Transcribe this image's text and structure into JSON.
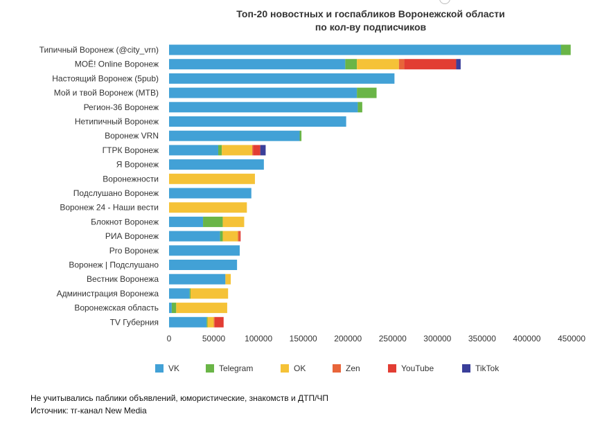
{
  "chart_data": {
    "type": "bar",
    "orientation": "horizontal",
    "stacked": true,
    "title": [
      "Топ-20 новостных и госпабликов Воронежской области",
      "по кол-ву подписчиков"
    ],
    "categories": [
      "Типичный Воронеж (@city_vrn)",
      "МОЁ! Online Воронеж",
      "Настоящий Воронеж (5pub)",
      "Мой и твой Воронеж (МТВ)",
      "Регион-36 Воронеж",
      "Нетипичный Воронеж",
      "Воронеж VRN",
      "ГТРК Воронеж",
      "Я Воронеж",
      "Воронежности",
      "Подслушано Воронеж",
      "Воронеж 24 - Наши вести",
      "Блокнот Воронеж",
      "РИА Воронеж",
      "Pro Воронеж",
      "Воронеж | Подслушано",
      "Вестник Воронежа",
      "Администрация Воронежа",
      "Воронежская область",
      "TV Губерния"
    ],
    "series": [
      {
        "name": "VK",
        "color": "#42a1d6",
        "values": [
          438000,
          197000,
          252000,
          210000,
          211000,
          198000,
          146000,
          55000,
          106000,
          0,
          92000,
          0,
          38000,
          57000,
          79000,
          76000,
          63000,
          23000,
          3000,
          42000
        ]
      },
      {
        "name": "Telegram",
        "color": "#6ab547",
        "values": [
          11000,
          13000,
          0,
          22000,
          5000,
          0,
          2000,
          4000,
          0,
          0,
          0,
          0,
          22000,
          3000,
          0,
          0,
          0,
          1000,
          5000,
          1000
        ]
      },
      {
        "name": "OK",
        "color": "#f5c237",
        "values": [
          0,
          47000,
          0,
          0,
          0,
          0,
          0,
          34000,
          0,
          96000,
          0,
          87000,
          24000,
          17000,
          0,
          0,
          6000,
          42000,
          57000,
          7000
        ]
      },
      {
        "name": "Zen",
        "color": "#e8653a",
        "values": [
          0,
          6000,
          0,
          0,
          0,
          0,
          0,
          1000,
          0,
          0,
          0,
          0,
          0,
          2000,
          0,
          0,
          0,
          0,
          0,
          1000
        ]
      },
      {
        "name": "YouTube",
        "color": "#e23d33",
        "values": [
          0,
          58000,
          0,
          0,
          0,
          0,
          0,
          8000,
          0,
          0,
          0,
          0,
          0,
          1000,
          0,
          0,
          0,
          0,
          0,
          10000
        ]
      },
      {
        "name": "TikTok",
        "color": "#3a3f9a",
        "values": [
          0,
          5000,
          0,
          0,
          0,
          0,
          0,
          6000,
          0,
          0,
          0,
          0,
          0,
          0,
          0,
          0,
          0,
          0,
          0,
          0
        ]
      }
    ],
    "xlim": [
      0,
      450000
    ],
    "xticks": [
      0,
      50000,
      100000,
      150000,
      200000,
      250000,
      300000,
      350000,
      400000,
      450000
    ],
    "xlabel": "",
    "ylabel": "",
    "grid": false,
    "legend_position": "bottom"
  },
  "footnotes": [
    "Не учитывались паблики объявлений, юмористические, знакомств и ДТП/ЧП",
    "Источник: тг-канал New Media"
  ]
}
